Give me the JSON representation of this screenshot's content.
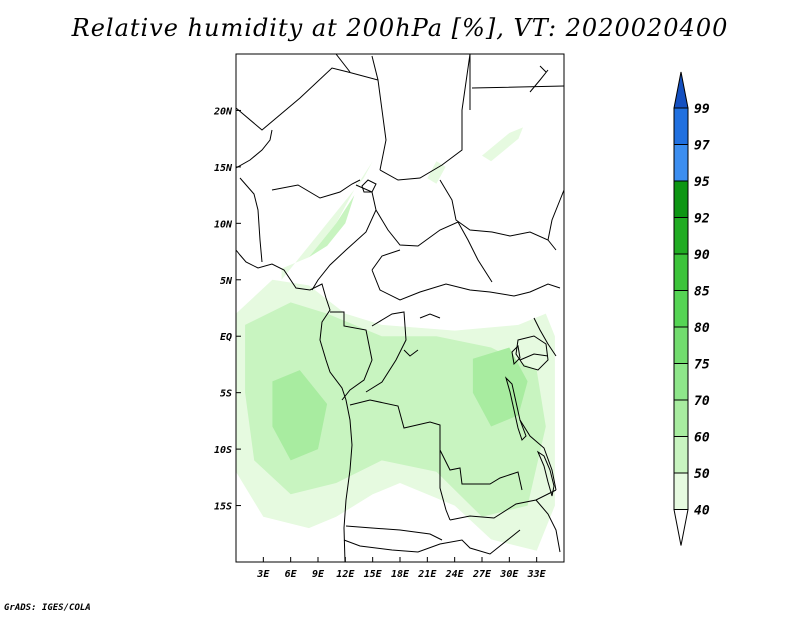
{
  "title": "Relative humidity at 200hPa [%], VT: 2020020400",
  "footer": "GrADS: IGES/COLA",
  "map": {
    "lon_range": [
      0,
      36
    ],
    "lat_range": [
      -20,
      25
    ],
    "lon_ticks": [
      {
        "value": 3,
        "label": "3E"
      },
      {
        "value": 6,
        "label": "6E"
      },
      {
        "value": 9,
        "label": "9E"
      },
      {
        "value": 12,
        "label": "12E"
      },
      {
        "value": 15,
        "label": "15E"
      },
      {
        "value": 18,
        "label": "18E"
      },
      {
        "value": 21,
        "label": "21E"
      },
      {
        "value": 24,
        "label": "24E"
      },
      {
        "value": 27,
        "label": "27E"
      },
      {
        "value": 30,
        "label": "30E"
      },
      {
        "value": 33,
        "label": "33E"
      }
    ],
    "lat_ticks": [
      {
        "value": 20,
        "label": "20N"
      },
      {
        "value": 15,
        "label": "15N"
      },
      {
        "value": 10,
        "label": "10N"
      },
      {
        "value": 5,
        "label": "5N"
      },
      {
        "value": 0,
        "label": "EQ"
      },
      {
        "value": -5,
        "label": "5S"
      },
      {
        "value": -10,
        "label": "10S"
      },
      {
        "value": -15,
        "label": "15S"
      }
    ]
  },
  "colorbar": {
    "levels": [
      "40",
      "50",
      "60",
      "70",
      "75",
      "80",
      "85",
      "90",
      "92",
      "95",
      "97",
      "99"
    ],
    "colors": [
      "#e6fae0",
      "#c8f4c0",
      "#a8eca0",
      "#8ee68a",
      "#72dc6e",
      "#55d454",
      "#3cc43a",
      "#20ac22",
      "#0d9613",
      "#3c8ef0",
      "#2070e0",
      "#1450c0"
    ]
  },
  "humidity_regions": [
    {
      "level_index": 0,
      "points": [
        [
          0,
          2
        ],
        [
          4,
          5
        ],
        [
          8,
          4.5
        ],
        [
          12,
          2
        ],
        [
          16,
          1
        ],
        [
          24,
          0.5
        ],
        [
          31,
          1
        ],
        [
          34,
          2
        ],
        [
          35,
          0
        ],
        [
          35,
          -15
        ],
        [
          33,
          -19
        ],
        [
          28,
          -18
        ],
        [
          24,
          -15
        ],
        [
          18,
          -13
        ],
        [
          15,
          -14
        ],
        [
          11,
          -16
        ],
        [
          8,
          -17
        ],
        [
          3,
          -16
        ],
        [
          0,
          -12
        ]
      ]
    },
    {
      "level_index": 1,
      "points": [
        [
          1,
          1
        ],
        [
          6,
          3
        ],
        [
          10,
          2
        ],
        [
          16,
          0
        ],
        [
          22,
          0
        ],
        [
          28,
          -1
        ],
        [
          33,
          -3
        ],
        [
          34,
          -8
        ],
        [
          32,
          -15
        ],
        [
          27,
          -16
        ],
        [
          22,
          -12
        ],
        [
          16,
          -11
        ],
        [
          11,
          -13
        ],
        [
          6,
          -14
        ],
        [
          2,
          -11
        ],
        [
          1,
          -5
        ]
      ]
    },
    {
      "level_index": 2,
      "points": [
        [
          4,
          -4
        ],
        [
          7,
          -3
        ],
        [
          10,
          -6
        ],
        [
          9,
          -10
        ],
        [
          6,
          -11
        ],
        [
          4,
          -8
        ]
      ]
    },
    {
      "level_index": 2,
      "points": [
        [
          26,
          -2
        ],
        [
          30,
          -1
        ],
        [
          32,
          -4
        ],
        [
          31,
          -7
        ],
        [
          28,
          -8
        ],
        [
          26,
          -5
        ]
      ]
    },
    {
      "level_index": 0,
      "points": [
        [
          5,
          5
        ],
        [
          9,
          9
        ],
        [
          12,
          12
        ],
        [
          14,
          14
        ],
        [
          15,
          15.5
        ],
        [
          13,
          13
        ],
        [
          11,
          10
        ],
        [
          8,
          7
        ],
        [
          5,
          6
        ]
      ]
    },
    {
      "level_index": 1,
      "points": [
        [
          8,
          7
        ],
        [
          11,
          10
        ],
        [
          13,
          12.5
        ],
        [
          12,
          10
        ],
        [
          10,
          8
        ]
      ]
    },
    {
      "level_index": 0,
      "points": [
        [
          21,
          14
        ],
        [
          22,
          15.5
        ],
        [
          23,
          15
        ],
        [
          22,
          13.5
        ]
      ]
    },
    {
      "level_index": 0,
      "points": [
        [
          27,
          16
        ],
        [
          30,
          18
        ],
        [
          31.5,
          18.5
        ],
        [
          31,
          17.5
        ],
        [
          28,
          15.5
        ]
      ]
    }
  ]
}
